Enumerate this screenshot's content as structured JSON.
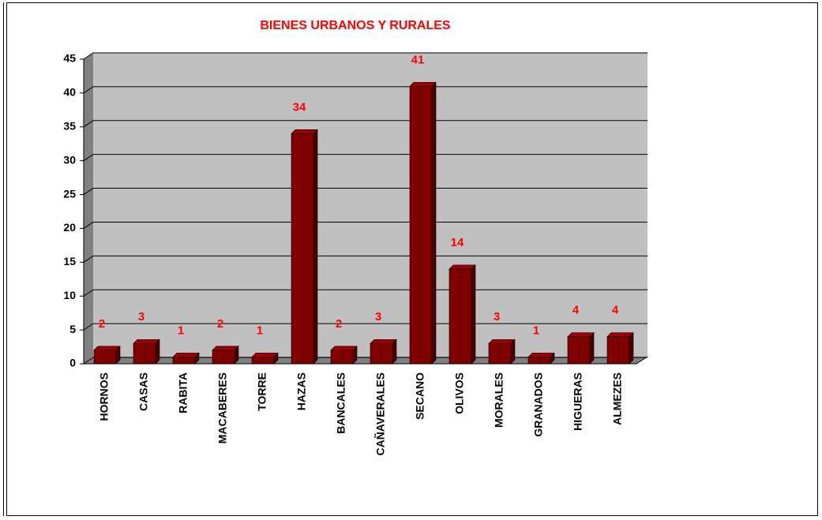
{
  "chart_data": {
    "type": "bar",
    "title": "BIENES URBANOS Y RURALES",
    "categories": [
      "HORNOS",
      "CASAS",
      "RABITA",
      "MACABERES",
      "TORRE",
      "HAZAS",
      "BANCALES",
      "CAÑAVERALES",
      "SECANO",
      "OLIVOS",
      "MORALES",
      "GRANADOS",
      "HIGUERAS",
      "ALMEZES"
    ],
    "values": [
      2,
      3,
      1,
      2,
      1,
      34,
      2,
      3,
      41,
      14,
      3,
      1,
      4,
      4
    ],
    "color": "#800000",
    "ylim": [
      0,
      45
    ],
    "yticks": [
      0,
      5,
      10,
      15,
      20,
      25,
      30,
      35,
      40,
      45
    ],
    "grid": true
  }
}
